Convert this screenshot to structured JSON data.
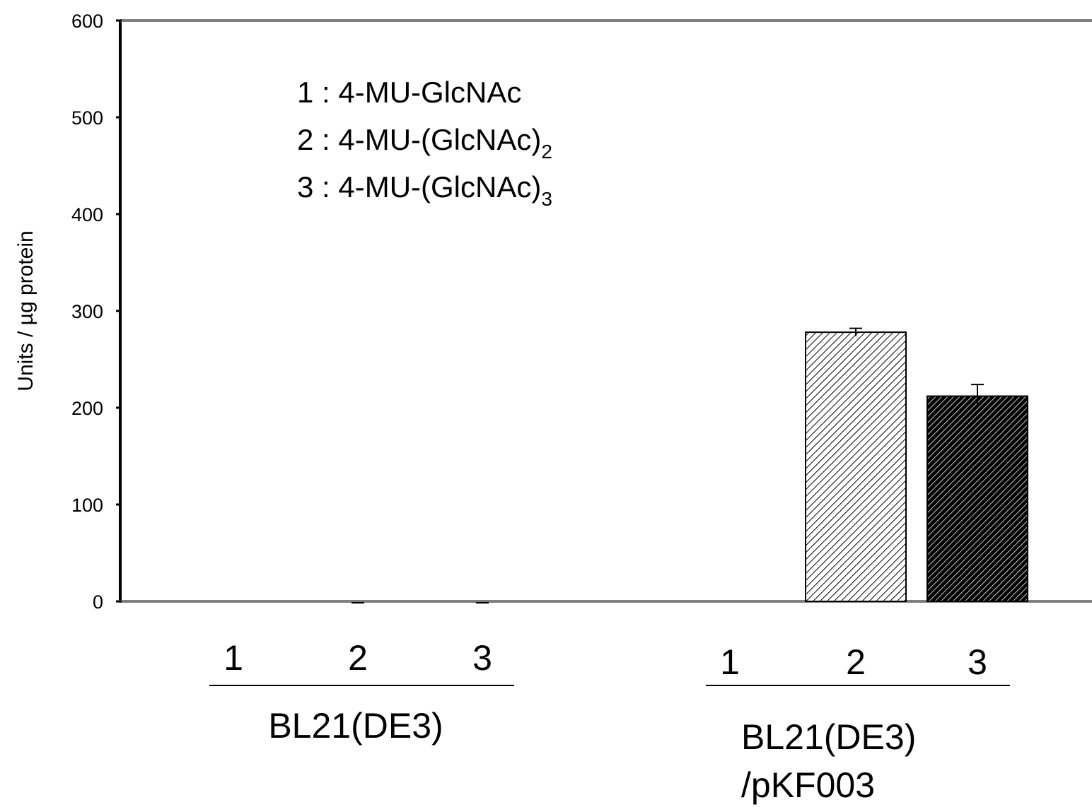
{
  "chart_data": {
    "type": "bar",
    "title": "",
    "xlabel": "",
    "ylabel": "Units / µg protein",
    "ylim": [
      0,
      600
    ],
    "yticks": [
      0,
      100,
      200,
      300,
      400,
      500,
      600
    ],
    "grid": false,
    "legend": {
      "placement": "top-left",
      "entries": [
        {
          "key": "1",
          "text": "1 : 4-MU-GlcNAc",
          "main": "1 : 4-MU-GlcNAc",
          "sub": ""
        },
        {
          "key": "2",
          "text": "2 : 4-MU-(GlcNAc)2",
          "main": "2 : 4-MU-(GlcNAc)",
          "sub": "2"
        },
        {
          "key": "3",
          "text": "3 : 4-MU-(GlcNAc)3",
          "main": "3 : 4-MU-(GlcNAc)",
          "sub": "3"
        }
      ]
    },
    "groups": [
      {
        "label_lines": [
          "BL21(DE3)"
        ],
        "categories": [
          "1",
          "2",
          "3"
        ],
        "values": [
          0,
          0,
          0
        ],
        "errors": [
          0,
          0,
          0
        ]
      },
      {
        "label_lines": [
          "BL21(DE3)",
          "/pKF003"
        ],
        "categories": [
          "1",
          "2",
          "3"
        ],
        "values": [
          0,
          278,
          212
        ],
        "errors": [
          0,
          4,
          12
        ]
      }
    ],
    "fills": {
      "1": "#ffffff",
      "2": "light-diagonal-hatch",
      "3": "dark-diagonal-hatch"
    }
  }
}
